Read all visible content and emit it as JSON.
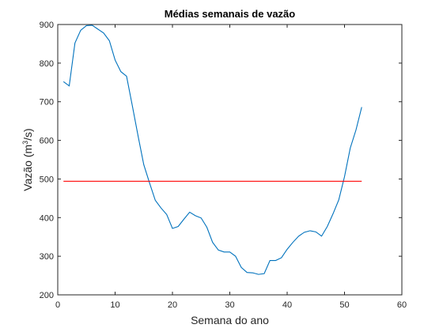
{
  "chart_data": {
    "type": "line",
    "title": "Médias semanais de vazão",
    "xlabel": "Semana do ano",
    "ylabel": {
      "prefix": "Vazão (m",
      "sup": "3",
      "suffix": "/s)"
    },
    "xlim": [
      0,
      60
    ],
    "ylim": [
      200,
      900
    ],
    "xticks": [
      0,
      10,
      20,
      30,
      40,
      50,
      60
    ],
    "yticks": [
      200,
      300,
      400,
      500,
      600,
      700,
      800,
      900
    ],
    "grid": false,
    "legend": "none",
    "series": [
      {
        "color": "#0072BD",
        "x": [
          1,
          2,
          3,
          4,
          5,
          6,
          7,
          8,
          9,
          10,
          11,
          12,
          13,
          14,
          15,
          16,
          17,
          18,
          19,
          20,
          21,
          22,
          23,
          24,
          25,
          26,
          27,
          28,
          29,
          30,
          31,
          32,
          33,
          34,
          35,
          36,
          37,
          38,
          39,
          40,
          41,
          42,
          43,
          44,
          45,
          46,
          47,
          48,
          49,
          50,
          51,
          52,
          53
        ],
        "y": [
          752,
          741,
          852,
          885,
          897,
          898,
          888,
          878,
          858,
          808,
          778,
          766,
          690,
          612,
          537,
          490,
          445,
          425,
          408,
          372,
          377,
          396,
          414,
          405,
          399,
          375,
          336,
          316,
          311,
          311,
          300,
          271,
          258,
          257,
          253,
          255,
          289,
          289,
          296,
          318,
          336,
          352,
          362,
          366,
          363,
          352,
          377,
          410,
          446,
          506,
          580,
          627,
          686
        ]
      },
      {
        "color": "#FF0000",
        "x": [
          1,
          53
        ],
        "y": [
          494,
          494
        ]
      }
    ]
  }
}
